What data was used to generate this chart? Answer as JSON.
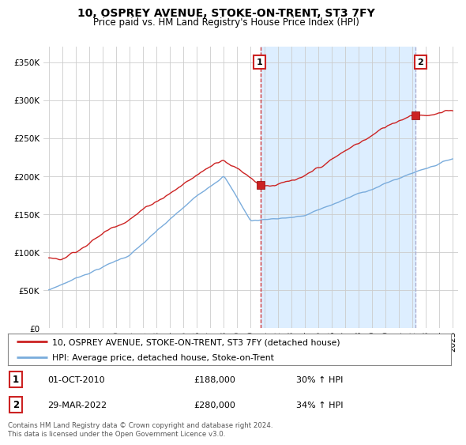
{
  "title": "10, OSPREY AVENUE, STOKE-ON-TRENT, ST3 7FY",
  "subtitle": "Price paid vs. HM Land Registry's House Price Index (HPI)",
  "legend_line1": "10, OSPREY AVENUE, STOKE-ON-TRENT, ST3 7FY (detached house)",
  "legend_line2": "HPI: Average price, detached house, Stoke-on-Trent",
  "annotation1_date": "01-OCT-2010",
  "annotation1_price": "£188,000",
  "annotation1_hpi": "30% ↑ HPI",
  "annotation2_date": "29-MAR-2022",
  "annotation2_price": "£280,000",
  "annotation2_hpi": "34% ↑ HPI",
  "footer": "Contains HM Land Registry data © Crown copyright and database right 2024.\nThis data is licensed under the Open Government Licence v3.0.",
  "price_color": "#cc2222",
  "hpi_color": "#7aacdc",
  "shade_color": "#ddeeff",
  "annotation_vline1_color": "#cc2222",
  "annotation_vline2_color": "#aaaacc",
  "annotation_box_color": "#cc2222",
  "ylim": [
    0,
    370000
  ],
  "yticks": [
    0,
    50000,
    100000,
    150000,
    200000,
    250000,
    300000,
    350000
  ],
  "background_color": "#ffffff",
  "grid_color": "#cccccc",
  "t1": 2010.75,
  "t2": 2022.21,
  "p1": 188000,
  "p2": 280000
}
